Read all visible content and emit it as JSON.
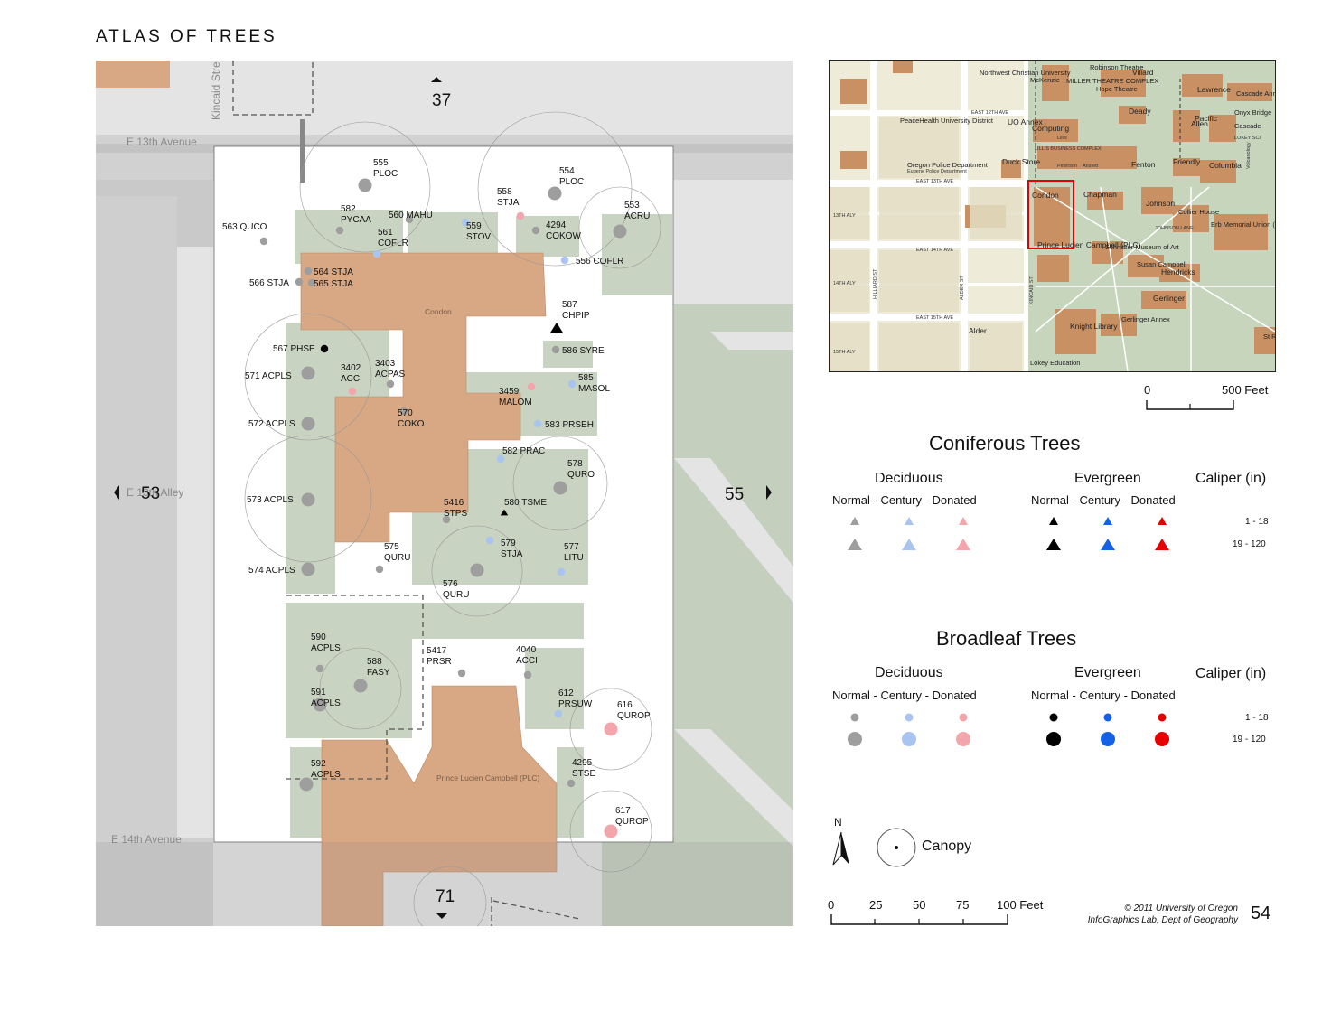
{
  "title": "ATLAS OF TREES",
  "page_number": "54",
  "streets": {
    "e13": "E 13th Avenue",
    "e14": "E 14th Avenue",
    "kincaid": "Kincaid Street",
    "alley": "E 13th Alley"
  },
  "adjacent_pages": {
    "north": "37",
    "south": "71",
    "west": "53",
    "east": "55"
  },
  "buildings": {
    "condon": "Condon",
    "plc": "Prince Lucien Campbell (PLC)"
  },
  "trees": [
    {
      "id": "555",
      "code": "PLOC",
      "category": "broadleaf-deciduous",
      "status": "normal",
      "size": "large"
    },
    {
      "id": "554",
      "code": "PLOC",
      "category": "broadleaf-deciduous",
      "status": "normal",
      "size": "large"
    },
    {
      "id": "558",
      "code": "STJA",
      "category": "broadleaf-deciduous",
      "status": "donated",
      "size": "small"
    },
    {
      "id": "553",
      "code": "ACRU",
      "category": "broadleaf-deciduous",
      "status": "normal",
      "size": "large"
    },
    {
      "id": "563",
      "code": "QUCO",
      "category": "broadleaf-deciduous",
      "status": "normal",
      "size": "small"
    },
    {
      "id": "582",
      "code": "PYCAA",
      "category": "broadleaf-deciduous",
      "status": "normal",
      "size": "small"
    },
    {
      "id": "560",
      "code": "MAHU",
      "category": "broadleaf-deciduous",
      "status": "normal",
      "size": "small"
    },
    {
      "id": "561",
      "code": "COFLR",
      "category": "broadleaf-deciduous",
      "status": "century",
      "size": "small"
    },
    {
      "id": "559",
      "code": "STOV",
      "category": "broadleaf-deciduous",
      "status": "century",
      "size": "small"
    },
    {
      "id": "4294",
      "code": "COKOW",
      "category": "broadleaf-deciduous",
      "status": "normal",
      "size": "small"
    },
    {
      "id": "556",
      "code": "COFLR",
      "category": "broadleaf-deciduous",
      "status": "century",
      "size": "small"
    },
    {
      "id": "564",
      "code": "STJA",
      "category": "broadleaf-deciduous",
      "status": "normal",
      "size": "small"
    },
    {
      "id": "565",
      "code": "STJA",
      "category": "broadleaf-deciduous",
      "status": "normal",
      "size": "small"
    },
    {
      "id": "566",
      "code": "STJA",
      "category": "broadleaf-deciduous",
      "status": "normal",
      "size": "small"
    },
    {
      "id": "587",
      "code": "CHPIP",
      "category": "coniferous-evergreen",
      "status": "normal",
      "size": "large"
    },
    {
      "id": "567",
      "code": "PHSE",
      "category": "broadleaf-evergreen",
      "status": "normal",
      "size": "small"
    },
    {
      "id": "586",
      "code": "SYRE",
      "category": "broadleaf-deciduous",
      "status": "normal",
      "size": "small"
    },
    {
      "id": "571",
      "code": "ACPLS",
      "category": "broadleaf-deciduous",
      "status": "normal",
      "size": "large"
    },
    {
      "id": "3402",
      "code": "ACCI",
      "category": "broadleaf-deciduous",
      "status": "donated",
      "size": "small"
    },
    {
      "id": "3403",
      "code": "ACPAS",
      "category": "broadleaf-deciduous",
      "status": "normal",
      "size": "small"
    },
    {
      "id": "585",
      "code": "MASOL",
      "category": "broadleaf-deciduous",
      "status": "century",
      "size": "small"
    },
    {
      "id": "3459",
      "code": "MALOM",
      "category": "broadleaf-deciduous",
      "status": "donated",
      "size": "small"
    },
    {
      "id": "570",
      "code": "COKO",
      "category": "broadleaf-deciduous",
      "status": "normal",
      "size": "small"
    },
    {
      "id": "572",
      "code": "ACPLS",
      "category": "broadleaf-deciduous",
      "status": "normal",
      "size": "large"
    },
    {
      "id": "583",
      "code": "PRSEH",
      "category": "broadleaf-deciduous",
      "status": "century",
      "size": "small"
    },
    {
      "id": "582",
      "code": "PRAC",
      "category": "broadleaf-deciduous",
      "status": "century",
      "size": "small"
    },
    {
      "id": "578",
      "code": "QURO",
      "category": "broadleaf-deciduous",
      "status": "normal",
      "size": "large"
    },
    {
      "id": "573",
      "code": "ACPLS",
      "category": "broadleaf-deciduous",
      "status": "normal",
      "size": "large"
    },
    {
      "id": "5416",
      "code": "STPS",
      "category": "broadleaf-deciduous",
      "status": "normal",
      "size": "small"
    },
    {
      "id": "580",
      "code": "TSME",
      "category": "coniferous-evergreen",
      "status": "normal",
      "size": "small"
    },
    {
      "id": "575",
      "code": "QURU",
      "category": "broadleaf-deciduous",
      "status": "normal",
      "size": "small"
    },
    {
      "id": "579",
      "code": "STJA",
      "category": "broadleaf-deciduous",
      "status": "century",
      "size": "small"
    },
    {
      "id": "577",
      "code": "LITU",
      "category": "broadleaf-deciduous",
      "status": "century",
      "size": "small"
    },
    {
      "id": "574",
      "code": "ACPLS",
      "category": "broadleaf-deciduous",
      "status": "normal",
      "size": "large"
    },
    {
      "id": "576",
      "code": "QURU",
      "category": "broadleaf-deciduous",
      "status": "normal",
      "size": "large"
    },
    {
      "id": "590",
      "code": "ACPLS",
      "category": "broadleaf-deciduous",
      "status": "normal",
      "size": "small"
    },
    {
      "id": "5417",
      "code": "PRSR",
      "category": "broadleaf-deciduous",
      "status": "normal",
      "size": "small"
    },
    {
      "id": "4040",
      "code": "ACCI",
      "category": "broadleaf-deciduous",
      "status": "normal",
      "size": "small"
    },
    {
      "id": "588",
      "code": "FASY",
      "category": "broadleaf-deciduous",
      "status": "normal",
      "size": "large"
    },
    {
      "id": "591",
      "code": "ACPLS",
      "category": "broadleaf-deciduous",
      "status": "normal",
      "size": "large"
    },
    {
      "id": "612",
      "code": "PRSUW",
      "category": "broadleaf-deciduous",
      "status": "century",
      "size": "small"
    },
    {
      "id": "616",
      "code": "QUROP",
      "category": "broadleaf-deciduous",
      "status": "donated",
      "size": "large"
    },
    {
      "id": "592",
      "code": "ACPLS",
      "category": "broadleaf-deciduous",
      "status": "normal",
      "size": "large"
    },
    {
      "id": "4295",
      "code": "STSE",
      "category": "broadleaf-deciduous",
      "status": "normal",
      "size": "small"
    },
    {
      "id": "617",
      "code": "QUROP",
      "category": "broadleaf-deciduous",
      "status": "donated",
      "size": "large"
    }
  ],
  "inset_map": {
    "scale_labels": [
      "0",
      "500 Feet"
    ],
    "labels": [
      "Northwest Christian University",
      "McKenzie",
      "MILLER THEATRE COMPLEX",
      "Robinson Theatre",
      "Villard",
      "Hope Theatre",
      "Lawrence",
      "Cascade Annex",
      "Onyx Bridge",
      "PeaceHealth University District",
      "EAST 12TH AVE",
      "UO Annex",
      "Computing",
      "Deady",
      "Allen",
      "Pacific",
      "Cascade",
      "LOKEY SCI",
      "LILLIS BUSINESS COMPLEX",
      "Lillis",
      "Oregon Police Department",
      "Eugene Police Department",
      "Duck Store",
      "Peterson",
      "Anstett",
      "Fenton",
      "Friendly",
      "Columbia",
      "Volcanology",
      "EAST 13TH AVE",
      "Condon",
      "Chapman",
      "Johnson",
      "Collier House",
      "JOHNSON LANE",
      "Erb Memorial Union (EMU)",
      "13TH ALY",
      "EAST 14TH AVE",
      "Prince Lucien Campbell (PLC)",
      "Schnitzer Museum of Art",
      "Susan Campbell",
      "Hendricks",
      "14TH ALY",
      "HILLIARD ST",
      "ALDER ST",
      "KINCAID ST",
      "Gerlinger",
      "EAST 15TH AVE",
      "Alder",
      "Knight Library",
      "Gerlinger Annex",
      "Lokey Education",
      "15TH ALY",
      "St Rec"
    ]
  },
  "legend": {
    "coniferous_title": "Coniferous Trees",
    "broadleaf_title": "Broadleaf Trees",
    "deciduous": "Deciduous",
    "evergreen": "Evergreen",
    "caliper": "Caliper (in)",
    "sub_header": "Normal - Century - Donated",
    "range_small": "1 - 18",
    "range_large": "19 - 120",
    "colors": {
      "deciduous_normal": "#9e9e9e",
      "deciduous_century": "#a9c4ee",
      "deciduous_donated": "#f2a6ab",
      "evergreen_normal": "#000000",
      "evergreen_century": "#1460e6",
      "evergreen_donated": "#e60000"
    },
    "canopy": "Canopy",
    "north": "N"
  },
  "scale_bar": {
    "labels": [
      "0",
      "25",
      "50",
      "75",
      "100 Feet"
    ]
  },
  "credit": {
    "line1": "© 2011 University of Oregon",
    "line2": "InfoGraphics Lab, Dept of Geography"
  }
}
